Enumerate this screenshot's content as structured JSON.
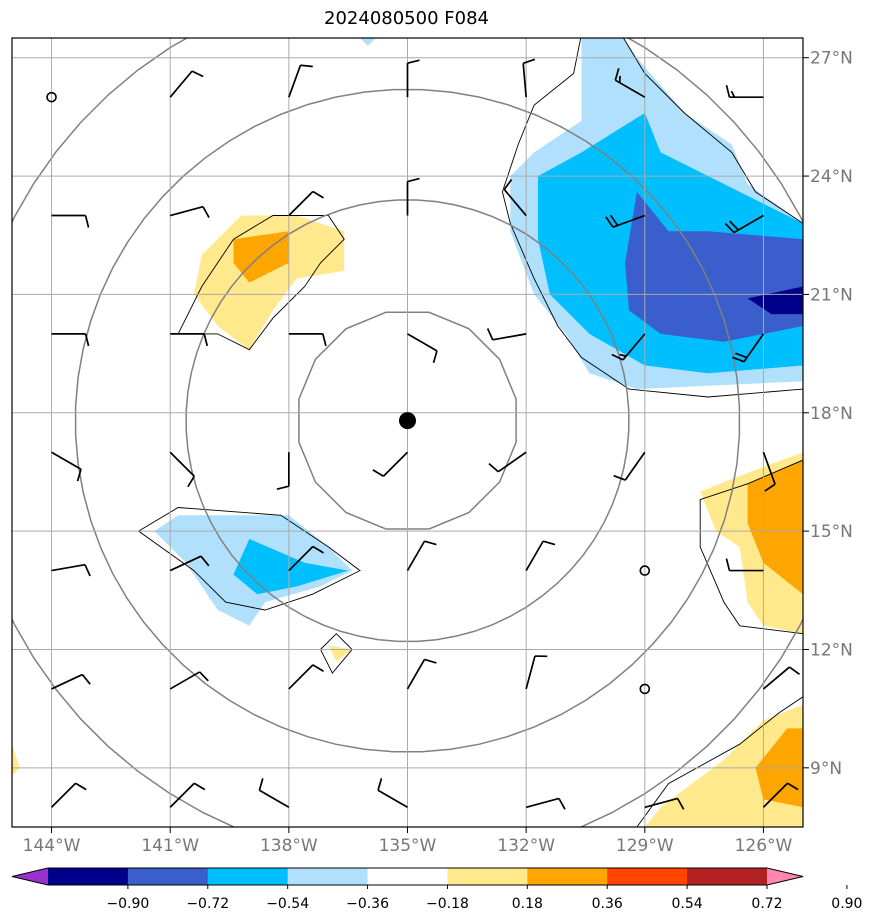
{
  "title": "2024080500 F084",
  "map": {
    "lon_range": [
      -145.0,
      -125.0
    ],
    "lat_range": [
      7.5,
      27.5
    ],
    "lon_ticks": [
      {
        "value": -144,
        "label": "144°W"
      },
      {
        "value": -141,
        "label": "141°W"
      },
      {
        "value": -138,
        "label": "138°W"
      },
      {
        "value": -135,
        "label": "135°W"
      },
      {
        "value": -132,
        "label": "132°W"
      },
      {
        "value": -129,
        "label": "129°W"
      },
      {
        "value": -126,
        "label": "126°W"
      }
    ],
    "lat_ticks": [
      {
        "value": 27,
        "label": "27°N"
      },
      {
        "value": 24,
        "label": "24°N"
      },
      {
        "value": 21,
        "label": "21°N"
      },
      {
        "value": 18,
        "label": "18°N"
      },
      {
        "value": 15,
        "label": "15°N"
      },
      {
        "value": 12,
        "label": "12°N"
      },
      {
        "value": 9,
        "label": "9°N"
      }
    ],
    "center": {
      "lon": -135.0,
      "lat": 17.8
    },
    "range_rings_deg": [
      2.8,
      5.6,
      8.4,
      11.2
    ]
  },
  "colorbar": {
    "boundaries": [
      -0.9,
      -0.72,
      -0.54,
      -0.36,
      -0.18,
      0.18,
      0.36,
      0.54,
      0.72,
      0.9
    ],
    "labels": [
      "−0.90",
      "−0.72",
      "−0.54",
      "−0.36",
      "−0.18",
      "0.18",
      "0.36",
      "0.54",
      "0.72",
      "0.90"
    ],
    "colors": [
      "#9932cc",
      "#00008b",
      "#3a5fcd",
      "#00bfff",
      "#b0e0fc",
      "#ffffff",
      "#ffe98c",
      "#ffa500",
      "#ff4500",
      "#b22222",
      "#ff88b0"
    ]
  },
  "fields": [
    {
      "name": "ne-negative-outer",
      "color": "#b0e0fc",
      "pts": [
        [
          -130.6,
          27.6
        ],
        [
          -129.6,
          27.6
        ],
        [
          -129.2,
          27.0
        ],
        [
          -128.0,
          25.6
        ],
        [
          -126.8,
          24.8
        ],
        [
          -126.4,
          23.8
        ],
        [
          -125.0,
          22.8
        ],
        [
          -125.0,
          18.8
        ],
        [
          -129.2,
          18.6
        ],
        [
          -130.4,
          19.0
        ],
        [
          -131.0,
          20.0
        ],
        [
          -131.8,
          21.0
        ],
        [
          -132.4,
          22.6
        ],
        [
          -132.4,
          24.0
        ],
        [
          -131.8,
          24.6
        ],
        [
          -130.6,
          25.4
        ],
        [
          -130.6,
          26.6
        ]
      ]
    },
    {
      "name": "ne-negative-mid",
      "color": "#00bfff",
      "pts": [
        [
          -129.0,
          25.6
        ],
        [
          -128.6,
          24.6
        ],
        [
          -127.0,
          23.8
        ],
        [
          -125.0,
          22.8
        ],
        [
          -125.0,
          19.2
        ],
        [
          -127.4,
          19.0
        ],
        [
          -129.0,
          19.2
        ],
        [
          -130.4,
          20.0
        ],
        [
          -131.4,
          21.0
        ],
        [
          -131.7,
          22.4
        ],
        [
          -131.7,
          24.0
        ],
        [
          -130.6,
          24.6
        ]
      ]
    },
    {
      "name": "ne-negative-inner",
      "color": "#3a5fcd",
      "pts": [
        [
          -129.2,
          23.6
        ],
        [
          -128.4,
          22.6
        ],
        [
          -127.4,
          22.6
        ],
        [
          -125.0,
          22.4
        ],
        [
          -125.0,
          20.2
        ],
        [
          -127.0,
          19.8
        ],
        [
          -128.6,
          20.0
        ],
        [
          -129.4,
          20.6
        ],
        [
          -129.5,
          21.8
        ]
      ]
    },
    {
      "name": "ne-negative-core",
      "color": "#00008b",
      "pts": [
        [
          -126.4,
          20.9
        ],
        [
          -125.0,
          21.2
        ],
        [
          -125.0,
          20.5
        ],
        [
          -125.8,
          20.5
        ]
      ]
    },
    {
      "name": "nw-positive-outer",
      "color": "#ffe98c",
      "pts": [
        [
          -140.2,
          22.0
        ],
        [
          -139.2,
          23.0
        ],
        [
          -137.8,
          23.0
        ],
        [
          -136.6,
          22.6
        ],
        [
          -136.6,
          21.6
        ],
        [
          -137.8,
          21.4
        ],
        [
          -138.4,
          20.6
        ],
        [
          -139.0,
          19.6
        ],
        [
          -139.8,
          20.2
        ],
        [
          -140.4,
          21.0
        ]
      ]
    },
    {
      "name": "nw-positive-inner",
      "color": "#ffa500",
      "pts": [
        [
          -139.4,
          22.4
        ],
        [
          -138.0,
          22.6
        ],
        [
          -138.0,
          21.8
        ],
        [
          -139.0,
          21.3
        ],
        [
          -139.4,
          21.8
        ]
      ]
    },
    {
      "name": "sw-negative-outer",
      "color": "#b0e0fc",
      "pts": [
        [
          -141.4,
          15.0
        ],
        [
          -140.8,
          15.4
        ],
        [
          -138.0,
          15.4
        ],
        [
          -137.0,
          14.6
        ],
        [
          -136.4,
          14.0
        ],
        [
          -137.2,
          13.6
        ],
        [
          -138.6,
          13.2
        ],
        [
          -139.0,
          12.6
        ],
        [
          -139.8,
          13.0
        ],
        [
          -140.6,
          14.2
        ]
      ]
    },
    {
      "name": "sw-negative-inner",
      "color": "#00bfff",
      "pts": [
        [
          -139.4,
          13.9
        ],
        [
          -139.0,
          14.8
        ],
        [
          -137.6,
          14.2
        ],
        [
          -136.5,
          14.0
        ],
        [
          -137.8,
          13.6
        ],
        [
          -138.8,
          13.4
        ]
      ]
    },
    {
      "name": "small-positive",
      "color": "#ffe98c",
      "pts": [
        [
          -137.0,
          12.1
        ],
        [
          -136.4,
          12.0
        ],
        [
          -136.8,
          11.7
        ]
      ]
    },
    {
      "name": "e-positive-outer",
      "color": "#ffe98c",
      "pts": [
        [
          -126.6,
          16.4
        ],
        [
          -125.0,
          17.0
        ],
        [
          -125.0,
          12.4
        ],
        [
          -126.0,
          12.6
        ],
        [
          -126.4,
          13.2
        ],
        [
          -126.6,
          14.6
        ],
        [
          -127.2,
          15.0
        ],
        [
          -127.6,
          16.0
        ]
      ]
    },
    {
      "name": "e-positive-inner",
      "color": "#ffa500",
      "pts": [
        [
          -126.4,
          16.2
        ],
        [
          -125.0,
          16.8
        ],
        [
          -125.0,
          13.4
        ],
        [
          -126.0,
          14.2
        ],
        [
          -126.4,
          15.2
        ]
      ]
    },
    {
      "name": "se-positive-outer",
      "color": "#ffe98c",
      "pts": [
        [
          -128.6,
          8.0
        ],
        [
          -127.0,
          9.2
        ],
        [
          -126.0,
          10.2
        ],
        [
          -125.0,
          10.6
        ],
        [
          -125.0,
          7.5
        ],
        [
          -129.0,
          7.5
        ]
      ]
    },
    {
      "name": "se-positive-inner",
      "color": "#ffa500",
      "pts": [
        [
          -126.2,
          9.0
        ],
        [
          -125.4,
          10.0
        ],
        [
          -125.0,
          10.0
        ],
        [
          -125.0,
          8.0
        ],
        [
          -126.0,
          8.2
        ]
      ]
    },
    {
      "name": "sw-corner-positive",
      "color": "#ffe98c",
      "pts": [
        [
          -145.0,
          9.6
        ],
        [
          -144.8,
          9.0
        ],
        [
          -145.0,
          8.8
        ]
      ]
    },
    {
      "name": "top-edge-negative",
      "color": "#b0e0fc",
      "pts": [
        [
          -136.2,
          27.5
        ],
        [
          -135.8,
          27.5
        ],
        [
          -136.0,
          27.3
        ]
      ]
    }
  ],
  "outlines": [
    {
      "name": "ne-outline",
      "pts": [
        [
          -130.6,
          27.6
        ],
        [
          -130.8,
          26.6
        ],
        [
          -131.8,
          25.8
        ],
        [
          -132.2,
          24.8
        ],
        [
          -132.6,
          23.6
        ],
        [
          -132.4,
          22.8
        ],
        [
          -131.8,
          21.4
        ],
        [
          -131.2,
          20.2
        ],
        [
          -130.6,
          19.4
        ],
        [
          -129.4,
          18.6
        ],
        [
          -127.4,
          18.4
        ],
        [
          -125.0,
          18.6
        ]
      ],
      "closed": false
    },
    {
      "name": "ne-outline-top",
      "pts": [
        [
          -129.6,
          27.6
        ],
        [
          -129.0,
          26.6
        ],
        [
          -128.0,
          25.6
        ],
        [
          -126.8,
          24.6
        ],
        [
          -126.2,
          23.6
        ],
        [
          -125.0,
          22.8
        ]
      ],
      "closed": false
    },
    {
      "name": "nw-outline",
      "pts": [
        [
          -140.8,
          20.0
        ],
        [
          -140.2,
          21.2
        ],
        [
          -139.4,
          22.4
        ],
        [
          -138.4,
          23.0
        ],
        [
          -137.0,
          23.0
        ],
        [
          -136.6,
          22.4
        ],
        [
          -137.2,
          21.8
        ],
        [
          -137.6,
          21.2
        ],
        [
          -138.4,
          20.4
        ],
        [
          -139.0,
          19.6
        ],
        [
          -139.8,
          20.0
        ]
      ],
      "closed": true
    },
    {
      "name": "sw-outline",
      "pts": [
        [
          -141.8,
          15.0
        ],
        [
          -140.8,
          15.6
        ],
        [
          -138.2,
          15.4
        ],
        [
          -137.0,
          14.6
        ],
        [
          -136.2,
          14.0
        ],
        [
          -137.4,
          13.4
        ],
        [
          -138.6,
          13.0
        ],
        [
          -139.6,
          13.2
        ],
        [
          -140.4,
          14.0
        ]
      ],
      "closed": true
    },
    {
      "name": "small-outline",
      "pts": [
        [
          -137.2,
          12.0
        ],
        [
          -136.8,
          12.4
        ],
        [
          -136.4,
          12.0
        ],
        [
          -136.9,
          11.4
        ]
      ],
      "closed": true
    },
    {
      "name": "e-outline",
      "pts": [
        [
          -125.0,
          16.8
        ],
        [
          -126.4,
          16.2
        ],
        [
          -127.6,
          15.8
        ],
        [
          -127.6,
          14.6
        ],
        [
          -127.0,
          13.2
        ],
        [
          -126.6,
          12.6
        ],
        [
          -125.0,
          12.4
        ]
      ],
      "closed": false
    },
    {
      "name": "se-outline",
      "pts": [
        [
          -129.2,
          7.5
        ],
        [
          -128.4,
          8.6
        ],
        [
          -126.6,
          9.6
        ],
        [
          -125.6,
          10.4
        ],
        [
          -125.0,
          10.8
        ]
      ],
      "closed": false
    }
  ],
  "barbs": [
    {
      "lon": -144,
      "lat": 26,
      "dir": 0,
      "kt": 0
    },
    {
      "lon": -141,
      "lat": 26,
      "dir": 40,
      "kt": 10
    },
    {
      "lon": -138,
      "lat": 26,
      "dir": 20,
      "kt": 10
    },
    {
      "lon": -135,
      "lat": 26,
      "dir": 0,
      "kt": 10
    },
    {
      "lon": -132,
      "lat": 26,
      "dir": 355,
      "kt": 10
    },
    {
      "lon": -129,
      "lat": 26,
      "dir": 300,
      "kt": 15
    },
    {
      "lon": -126,
      "lat": 26,
      "dir": 270,
      "kt": 15
    },
    {
      "lon": -144,
      "lat": 23,
      "dir": 90,
      "kt": 10
    },
    {
      "lon": -141,
      "lat": 23,
      "dir": 75,
      "kt": 10
    },
    {
      "lon": -138,
      "lat": 23,
      "dir": 45,
      "kt": 10
    },
    {
      "lon": -135,
      "lat": 23,
      "dir": 0,
      "kt": 10
    },
    {
      "lon": -132,
      "lat": 23,
      "dir": 320,
      "kt": 10
    },
    {
      "lon": -129,
      "lat": 23,
      "dir": 250,
      "kt": 20
    },
    {
      "lon": -126,
      "lat": 23,
      "dir": 240,
      "kt": 20
    },
    {
      "lon": -144,
      "lat": 20,
      "dir": 90,
      "kt": 10
    },
    {
      "lon": -141,
      "lat": 20,
      "dir": 90,
      "kt": 10
    },
    {
      "lon": -138,
      "lat": 20,
      "dir": 90,
      "kt": 10
    },
    {
      "lon": -135,
      "lat": 20,
      "dir": 120,
      "kt": 10
    },
    {
      "lon": -132,
      "lat": 20,
      "dir": 260,
      "kt": 10
    },
    {
      "lon": -129,
      "lat": 20,
      "dir": 220,
      "kt": 15
    },
    {
      "lon": -126,
      "lat": 20,
      "dir": 215,
      "kt": 20
    },
    {
      "lon": -144,
      "lat": 17,
      "dir": 120,
      "kt": 10
    },
    {
      "lon": -141,
      "lat": 17,
      "dir": 135,
      "kt": 10
    },
    {
      "lon": -138,
      "lat": 17,
      "dir": 180,
      "kt": 10
    },
    {
      "lon": -135,
      "lat": 17,
      "dir": 225,
      "kt": 10
    },
    {
      "lon": -132,
      "lat": 17,
      "dir": 235,
      "kt": 10
    },
    {
      "lon": -129,
      "lat": 17,
      "dir": 215,
      "kt": 10
    },
    {
      "lon": -126,
      "lat": 17,
      "dir": 160,
      "kt": 10
    },
    {
      "lon": -144,
      "lat": 14,
      "dir": 80,
      "kt": 10
    },
    {
      "lon": -141,
      "lat": 14,
      "dir": 65,
      "kt": 10
    },
    {
      "lon": -138,
      "lat": 14,
      "dir": 45,
      "kt": 10
    },
    {
      "lon": -135,
      "lat": 14,
      "dir": 30,
      "kt": 10
    },
    {
      "lon": -132,
      "lat": 14,
      "dir": 30,
      "kt": 10
    },
    {
      "lon": -129,
      "lat": 14,
      "dir": 0,
      "kt": 0
    },
    {
      "lon": -126,
      "lat": 14,
      "dir": 270,
      "kt": 10
    },
    {
      "lon": -144,
      "lat": 11,
      "dir": 65,
      "kt": 10
    },
    {
      "lon": -141,
      "lat": 11,
      "dir": 60,
      "kt": 10
    },
    {
      "lon": -138,
      "lat": 11,
      "dir": 45,
      "kt": 10
    },
    {
      "lon": -135,
      "lat": 11,
      "dir": 30,
      "kt": 10
    },
    {
      "lon": -132,
      "lat": 11,
      "dir": 15,
      "kt": 10
    },
    {
      "lon": -129,
      "lat": 11,
      "dir": 0,
      "kt": 0
    },
    {
      "lon": -126,
      "lat": 11,
      "dir": 50,
      "kt": 10
    },
    {
      "lon": -144,
      "lat": 8,
      "dir": 45,
      "kt": 10
    },
    {
      "lon": -141,
      "lat": 8,
      "dir": 45,
      "kt": 10
    },
    {
      "lon": -138,
      "lat": 8,
      "dir": 300,
      "kt": 10
    },
    {
      "lon": -135,
      "lat": 8,
      "dir": 300,
      "kt": 10
    },
    {
      "lon": -132,
      "lat": 8,
      "dir": 75,
      "kt": 10
    },
    {
      "lon": -129,
      "lat": 8,
      "dir": 75,
      "kt": 10
    },
    {
      "lon": -126,
      "lat": 8,
      "dir": 45,
      "kt": 10
    }
  ]
}
